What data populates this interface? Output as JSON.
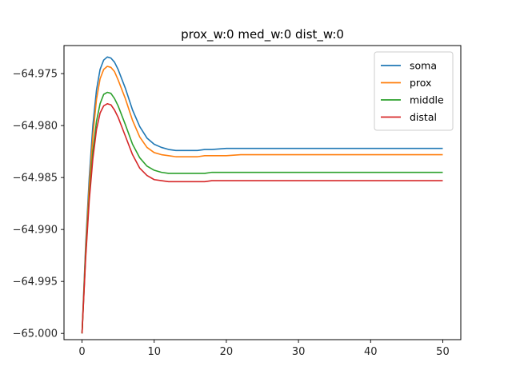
{
  "chart_data": {
    "type": "line",
    "title": "prox_w:0 med_w:0 dist_w:0",
    "xlabel": "",
    "ylabel": "",
    "xlim": [
      -2.5,
      52.5
    ],
    "ylim": [
      -65.0006,
      -64.9723
    ],
    "xticks": [
      0,
      10,
      20,
      30,
      40,
      50
    ],
    "xtick_labels": [
      "0",
      "10",
      "20",
      "30",
      "40",
      "50"
    ],
    "yticks": [
      -65.0,
      -64.995,
      -64.99,
      -64.985,
      -64.98,
      -64.975
    ],
    "ytick_labels": [
      "−65.000",
      "−64.995",
      "−64.990",
      "−64.985",
      "−64.980",
      "−64.975"
    ],
    "grid": false,
    "legend_position": "top-right",
    "series": [
      {
        "name": "soma",
        "color": "#1f77b4",
        "x": [
          0,
          0.5,
          1,
          1.5,
          2,
          2.5,
          3,
          3.5,
          4,
          4.5,
          5,
          6,
          7,
          8,
          9,
          10,
          11,
          12,
          13,
          14,
          15,
          16,
          17,
          18,
          20,
          22,
          25,
          30,
          35,
          40,
          45,
          50
        ],
        "y": [
          -65.0,
          -64.9915,
          -64.985,
          -64.98,
          -64.9766,
          -64.9746,
          -64.9737,
          -64.9734,
          -64.9735,
          -64.9739,
          -64.9746,
          -64.9764,
          -64.9785,
          -64.9801,
          -64.9812,
          -64.9818,
          -64.9821,
          -64.9823,
          -64.9824,
          -64.9824,
          -64.9824,
          -64.9824,
          -64.9823,
          -64.9823,
          -64.9822,
          -64.9822,
          -64.9822,
          -64.9822,
          -64.9822,
          -64.9822,
          -64.9822,
          -64.9822
        ]
      },
      {
        "name": "prox",
        "color": "#ff7f0e",
        "x": [
          0,
          0.5,
          1,
          1.5,
          2,
          2.5,
          3,
          3.5,
          4,
          4.5,
          5,
          6,
          7,
          8,
          9,
          10,
          11,
          12,
          13,
          14,
          15,
          16,
          17,
          18,
          20,
          22,
          25,
          30,
          35,
          40,
          45,
          50
        ],
        "y": [
          -65.0,
          -64.992,
          -64.9858,
          -64.981,
          -64.9775,
          -64.9755,
          -64.9746,
          -64.9743,
          -64.9744,
          -64.9748,
          -64.9756,
          -64.9774,
          -64.9795,
          -64.9811,
          -64.9821,
          -64.9826,
          -64.9828,
          -64.9829,
          -64.983,
          -64.983,
          -64.983,
          -64.983,
          -64.9829,
          -64.9829,
          -64.9829,
          -64.9828,
          -64.9828,
          -64.9828,
          -64.9828,
          -64.9828,
          -64.9828,
          -64.9828
        ]
      },
      {
        "name": "middle",
        "color": "#2ca02c",
        "x": [
          0,
          0.5,
          1,
          1.5,
          2,
          2.5,
          3,
          3.5,
          4,
          4.5,
          5,
          6,
          7,
          8,
          9,
          10,
          11,
          12,
          13,
          14,
          15,
          16,
          17,
          18,
          20,
          22,
          25,
          30,
          35,
          40,
          45,
          50
        ],
        "y": [
          -65.0,
          -64.9925,
          -64.9868,
          -64.9825,
          -64.9796,
          -64.9779,
          -64.977,
          -64.9768,
          -64.9769,
          -64.9774,
          -64.9781,
          -64.9799,
          -64.9818,
          -64.9831,
          -64.9839,
          -64.9843,
          -64.9845,
          -64.9846,
          -64.9846,
          -64.9846,
          -64.9846,
          -64.9846,
          -64.9846,
          -64.9845,
          -64.9845,
          -64.9845,
          -64.9845,
          -64.9845,
          -64.9845,
          -64.9845,
          -64.9845,
          -64.9845
        ]
      },
      {
        "name": "distal",
        "color": "#d62728",
        "x": [
          0,
          0.5,
          1,
          1.5,
          2,
          2.5,
          3,
          3.5,
          4,
          4.5,
          5,
          6,
          7,
          8,
          9,
          10,
          11,
          12,
          13,
          14,
          15,
          16,
          17,
          18,
          20,
          22,
          25,
          30,
          35,
          40,
          45,
          50
        ],
        "y": [
          -65.0,
          -64.9928,
          -64.9872,
          -64.9832,
          -64.9804,
          -64.9788,
          -64.9781,
          -64.9779,
          -64.978,
          -64.9785,
          -64.9792,
          -64.981,
          -64.9828,
          -64.9841,
          -64.9848,
          -64.9852,
          -64.9853,
          -64.9854,
          -64.9854,
          -64.9854,
          -64.9854,
          -64.9854,
          -64.9854,
          -64.9853,
          -64.9853,
          -64.9853,
          -64.9853,
          -64.9853,
          -64.9853,
          -64.9853,
          -64.9853,
          -64.9853
        ]
      }
    ]
  }
}
